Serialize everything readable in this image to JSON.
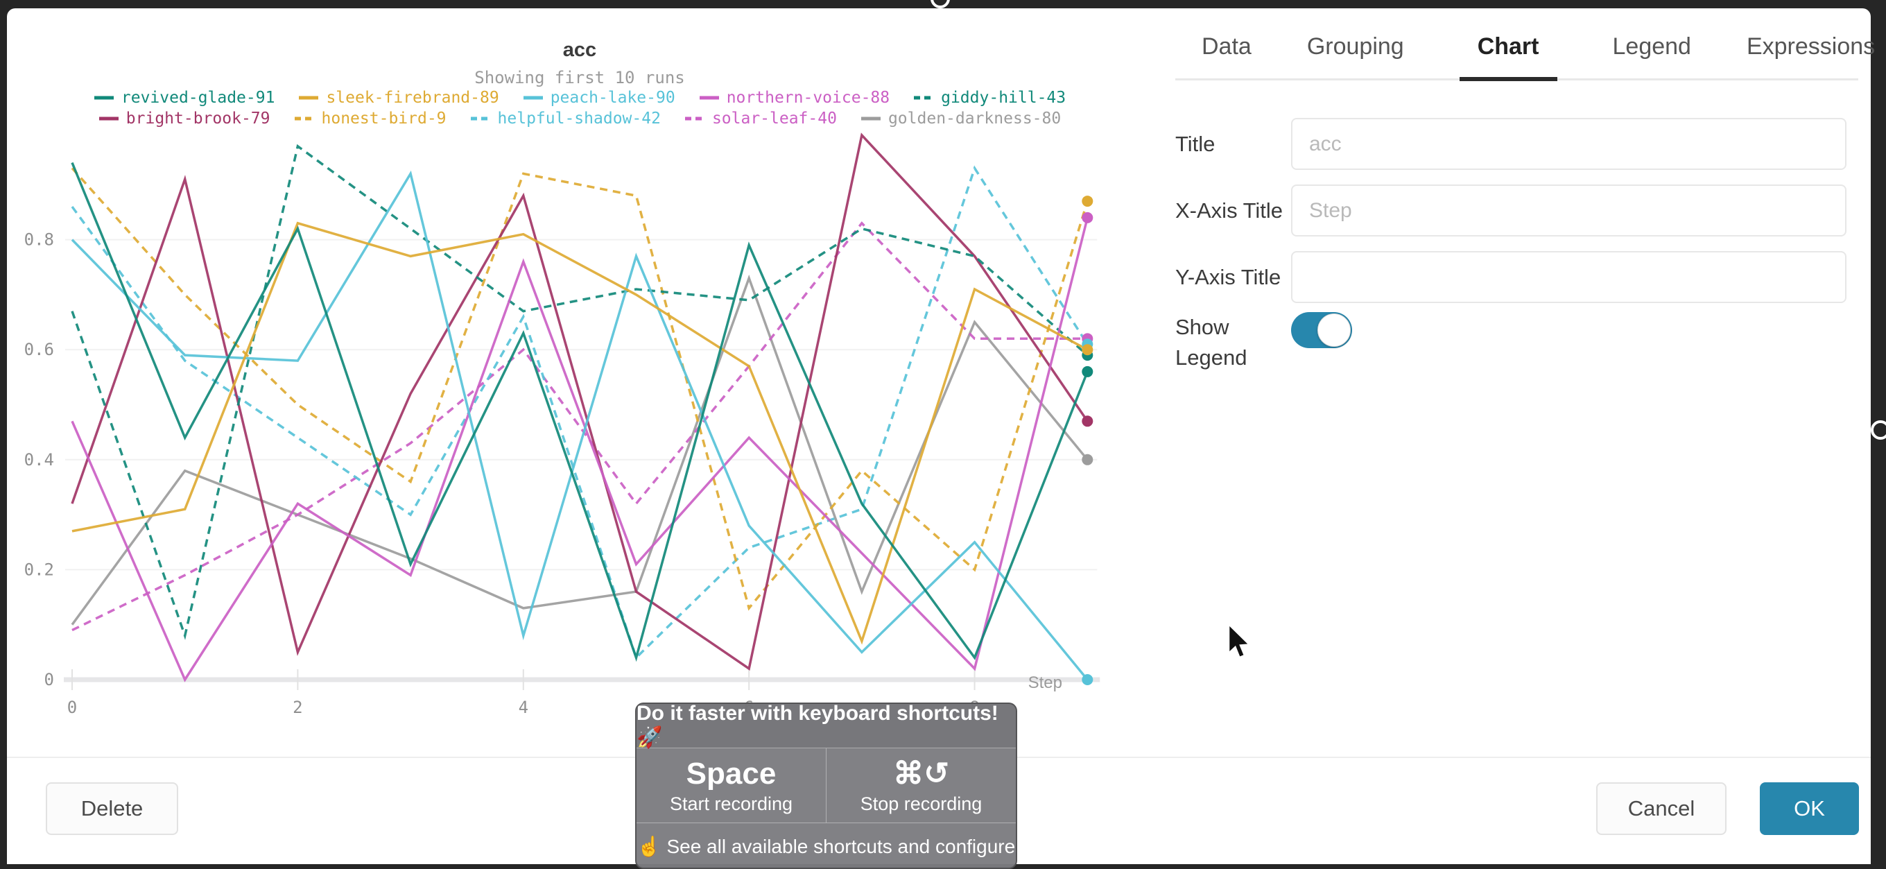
{
  "chart_data": {
    "type": "line",
    "title": "acc",
    "subtitle": "Showing first 10 runs",
    "xlabel": "Step",
    "ylabel": "",
    "xlim": [
      0,
      9
    ],
    "ylim": [
      0,
      1.0
    ],
    "xticks": [
      0,
      2,
      4,
      6,
      8
    ],
    "yticks": [
      0,
      0.2,
      0.4,
      0.6,
      0.8
    ],
    "grid": "horizontal",
    "legend_position": "top",
    "x": [
      0,
      1,
      2,
      3,
      4,
      5,
      6,
      7,
      8,
      9
    ],
    "series": [
      {
        "name": "revived-glade-91",
        "color": "#11897a",
        "dashed": false,
        "values": [
          0.94,
          0.44,
          0.82,
          0.21,
          0.63,
          0.04,
          0.79,
          0.32,
          0.04,
          0.56
        ]
      },
      {
        "name": "sleek-firebrand-89",
        "color": "#deaa33",
        "dashed": false,
        "values": [
          0.27,
          0.31,
          0.83,
          0.77,
          0.81,
          0.7,
          0.57,
          0.07,
          0.71,
          0.6
        ]
      },
      {
        "name": "peach-lake-90",
        "color": "#57c2d8",
        "dashed": false,
        "values": [
          0.8,
          0.59,
          0.58,
          0.92,
          0.08,
          0.77,
          0.28,
          0.05,
          0.25,
          0.0
        ]
      },
      {
        "name": "northern-voice-88",
        "color": "#cb5fc4",
        "dashed": false,
        "values": [
          0.47,
          0.0,
          0.32,
          0.19,
          0.76,
          0.21,
          0.44,
          0.23,
          0.02,
          0.84
        ]
      },
      {
        "name": "giddy-hill-43",
        "color": "#11897a",
        "dashed": true,
        "values": [
          0.67,
          0.08,
          0.97,
          0.82,
          0.67,
          0.71,
          0.69,
          0.82,
          0.77,
          0.59
        ]
      },
      {
        "name": "bright-brook-79",
        "color": "#a23566",
        "dashed": false,
        "values": [
          0.32,
          0.91,
          0.05,
          0.52,
          0.88,
          0.16,
          0.02,
          0.99,
          0.77,
          0.47
        ]
      },
      {
        "name": "honest-bird-9",
        "color": "#deaa33",
        "dashed": true,
        "values": [
          0.93,
          0.7,
          0.5,
          0.36,
          0.92,
          0.88,
          0.13,
          0.38,
          0.2,
          0.87
        ]
      },
      {
        "name": "helpful-shadow-42",
        "color": "#57c2d8",
        "dashed": true,
        "values": [
          0.86,
          0.58,
          0.44,
          0.3,
          0.66,
          0.04,
          0.24,
          0.31,
          0.93,
          0.61
        ]
      },
      {
        "name": "solar-leaf-40",
        "color": "#cb5fc4",
        "dashed": true,
        "values": [
          0.09,
          0.19,
          0.3,
          0.43,
          0.6,
          0.32,
          0.57,
          0.83,
          0.62,
          0.62
        ]
      },
      {
        "name": "golden-darkness-80",
        "color": "#9c9c9c",
        "dashed": false,
        "values": [
          0.1,
          0.38,
          0.3,
          0.22,
          0.13,
          0.16,
          0.73,
          0.16,
          0.65,
          0.4
        ]
      }
    ]
  },
  "panel": {
    "tabs": [
      {
        "label": "Data"
      },
      {
        "label": "Grouping"
      },
      {
        "label": "Chart"
      },
      {
        "label": "Legend"
      },
      {
        "label": "Expressions"
      }
    ],
    "fields": {
      "title_label": "Title",
      "title_value": "",
      "title_placeholder": "acc",
      "xaxis_label": "X-Axis Title",
      "xaxis_value": "",
      "xaxis_placeholder": "Step",
      "yaxis_label": "Y-Axis Title",
      "yaxis_value": "",
      "yaxis_placeholder": "",
      "show_legend_label": "Show Legend",
      "show_legend_state": "on"
    }
  },
  "footer": {
    "delete_label": "Delete",
    "cancel_label": "Cancel",
    "ok_label": "OK"
  },
  "toast": {
    "title": "Do it faster with keyboard shortcuts! 🚀",
    "shortcuts": [
      {
        "key": "Space",
        "desc": "Start recording"
      },
      {
        "key": "⌘↺",
        "desc": "Stop recording"
      }
    ],
    "footer_text": "☝️ See all available shortcuts and configure"
  },
  "colors": {
    "accent_blue": "#2787ad",
    "backdrop": "#262626",
    "active_tab": "#2b2b2b"
  }
}
